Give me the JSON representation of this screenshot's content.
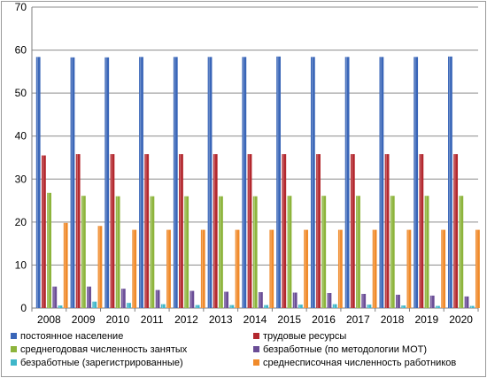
{
  "chart_data": {
    "type": "bar",
    "title": "",
    "xlabel": "",
    "ylabel": "",
    "ylim": [
      0,
      70
    ],
    "yticks": [
      0,
      10,
      20,
      30,
      40,
      50,
      60,
      70
    ],
    "grid": true,
    "legend_position": "bottom",
    "categories": [
      "2008",
      "2009",
      "2010",
      "2011",
      "2012",
      "2013",
      "2014",
      "2015",
      "2016",
      "2017",
      "2018",
      "2019",
      "2020"
    ],
    "series": [
      {
        "name": "постоянное население",
        "color": "#3a66b8",
        "values": [
          58.4,
          58.3,
          58.3,
          58.4,
          58.4,
          58.4,
          58.4,
          58.5,
          58.4,
          58.4,
          58.4,
          58.4,
          58.5
        ]
      },
      {
        "name": "трудовые ресурсы",
        "color": "#b3282e",
        "values": [
          35.5,
          35.8,
          35.8,
          35.8,
          35.8,
          35.8,
          35.8,
          35.8,
          35.8,
          35.8,
          35.8,
          35.8,
          35.8
        ]
      },
      {
        "name": "среднегодовая численность занятых",
        "color": "#8db43c",
        "values": [
          26.8,
          26.1,
          26.0,
          26.0,
          26.0,
          26.0,
          26.0,
          26.1,
          26.1,
          26.1,
          26.1,
          26.1,
          26.1
        ]
      },
      {
        "name": "безработные (по методологии МОТ)",
        "color": "#6a4d96",
        "values": [
          5.0,
          5.0,
          4.5,
          4.2,
          4.0,
          3.8,
          3.7,
          3.6,
          3.5,
          3.3,
          3.1,
          2.9,
          2.7
        ]
      },
      {
        "name": "безработные (зарегистрированные)",
        "color": "#3fb6c9",
        "values": [
          0.6,
          1.5,
          1.2,
          0.9,
          0.7,
          0.7,
          0.7,
          0.8,
          0.9,
          0.8,
          0.6,
          0.5,
          0.5
        ]
      },
      {
        "name": "среднесписочная численность работников",
        "color": "#f08a2a",
        "values": [
          19.8,
          19.1,
          18.2,
          18.2,
          18.2,
          18.2,
          18.2,
          18.2,
          18.2,
          18.2,
          18.2,
          18.2,
          18.2
        ]
      }
    ]
  }
}
